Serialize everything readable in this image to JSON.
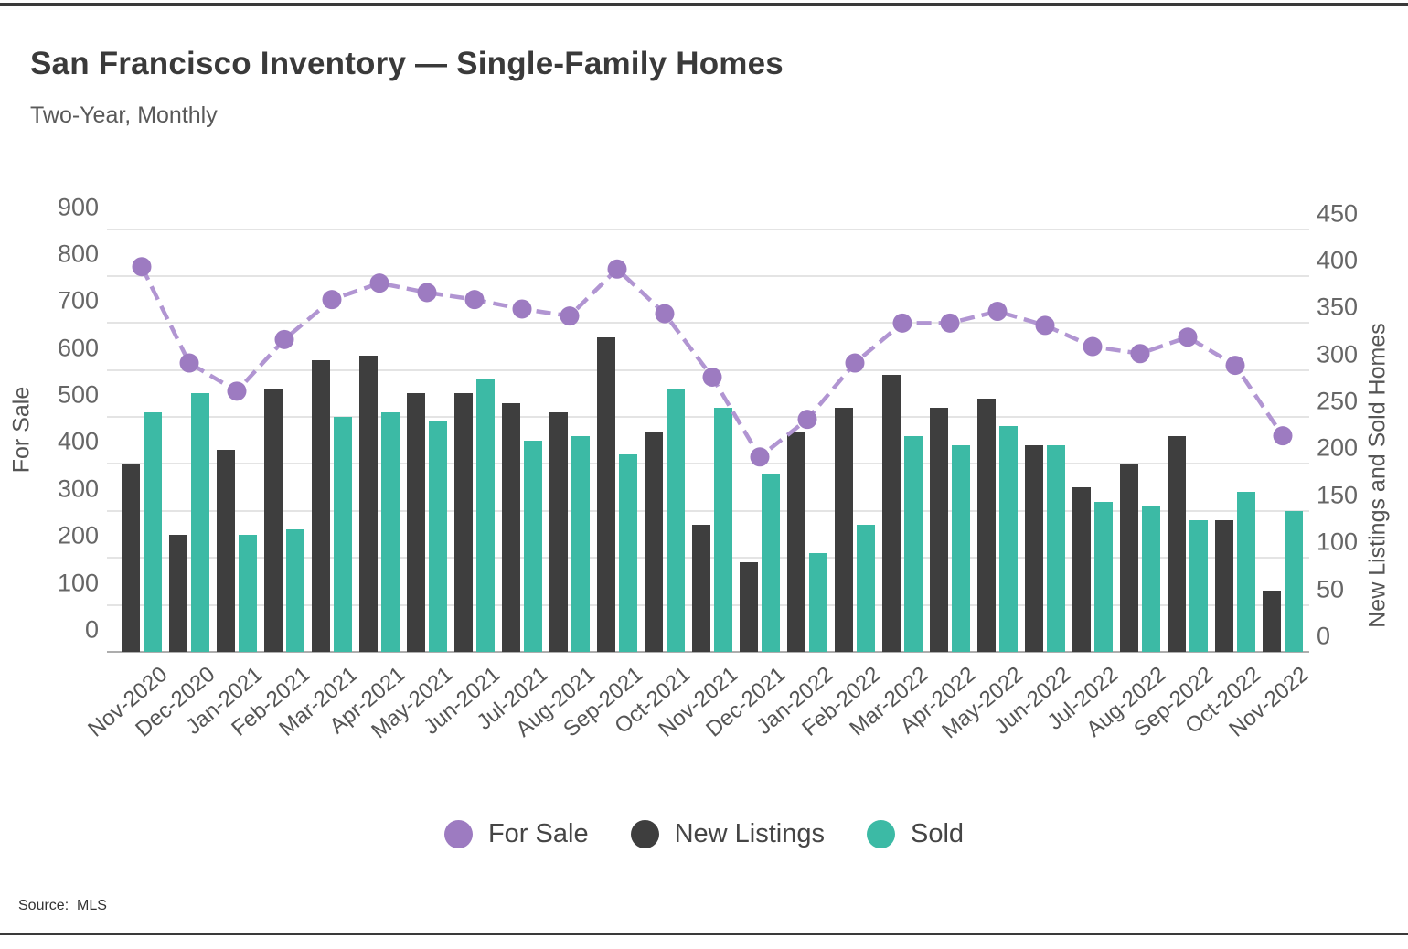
{
  "header": {
    "title": "San Francisco Inventory — Single-Family Homes",
    "subtitle": "Two-Year, Monthly"
  },
  "source": "Source:  MLS",
  "legend": [
    {
      "label": "For Sale",
      "color": "#9d7bc1",
      "shape": "circle"
    },
    {
      "label": "New Listings",
      "color": "#3e3e3e",
      "shape": "circle"
    },
    {
      "label": "Sold",
      "color": "#3cbaa5",
      "shape": "circle"
    }
  ],
  "colors": {
    "for_sale_line": "#b195d2",
    "for_sale_marker": "#9d7bc1",
    "new_listings_bar": "#3e3e3e",
    "sold_bar": "#3cbaa5",
    "grid": "#e4e4e4",
    "baseline": "#adadad",
    "rule": "#3a3a3a"
  },
  "chart_data": {
    "type": "bar",
    "note": "grouped bars (New Listings, Sold) on right axis + line with circle markers (For Sale) on left axis",
    "categories": [
      "Nov-2020",
      "Dec-2020",
      "Jan-2021",
      "Feb-2021",
      "Mar-2021",
      "Apr-2021",
      "May-2021",
      "Jun-2021",
      "Jul-2021",
      "Aug-2021",
      "Sep-2021",
      "Oct-2021",
      "Nov-2021",
      "Dec-2021",
      "Jan-2022",
      "Feb-2022",
      "Mar-2022",
      "Apr-2022",
      "May-2022",
      "Jun-2022",
      "Jul-2022",
      "Aug-2022",
      "Sep-2022",
      "Oct-2022",
      "Nov-2022"
    ],
    "series": [
      {
        "name": "For Sale",
        "axis": "left",
        "type": "line",
        "values": [
          820,
          615,
          555,
          665,
          750,
          785,
          765,
          750,
          730,
          715,
          815,
          720,
          585,
          415,
          495,
          615,
          700,
          700,
          725,
          695,
          650,
          635,
          670,
          610,
          460
        ]
      },
      {
        "name": "New Listings",
        "axis": "right",
        "type": "bar",
        "values": [
          200,
          125,
          215,
          280,
          310,
          315,
          275,
          275,
          265,
          255,
          335,
          235,
          135,
          95,
          235,
          260,
          295,
          260,
          270,
          220,
          175,
          200,
          230,
          140,
          65
        ]
      },
      {
        "name": "Sold",
        "axis": "right",
        "type": "bar",
        "values": [
          255,
          275,
          125,
          130,
          250,
          255,
          245,
          290,
          225,
          230,
          210,
          280,
          260,
          190,
          105,
          135,
          230,
          220,
          240,
          220,
          160,
          155,
          140,
          170,
          150
        ]
      }
    ],
    "title": "San Francisco Inventory — Single-Family Homes",
    "subtitle": "Two-Year, Monthly",
    "xlabel": "",
    "ylabel_left": "For Sale",
    "ylabel_right": "New Listings and Sold Homes",
    "ylim_left": [
      0,
      900
    ],
    "ylim_right": [
      0,
      450
    ],
    "left_ticks": [
      "900",
      "800",
      "700",
      "600",
      "500",
      "400",
      "300",
      "200",
      "100",
      "0"
    ],
    "right_ticks": [
      "450",
      "400",
      "350",
      "300",
      "250",
      "200",
      "150",
      "100",
      "50",
      "0"
    ],
    "grid": true,
    "legend_position": "bottom"
  }
}
